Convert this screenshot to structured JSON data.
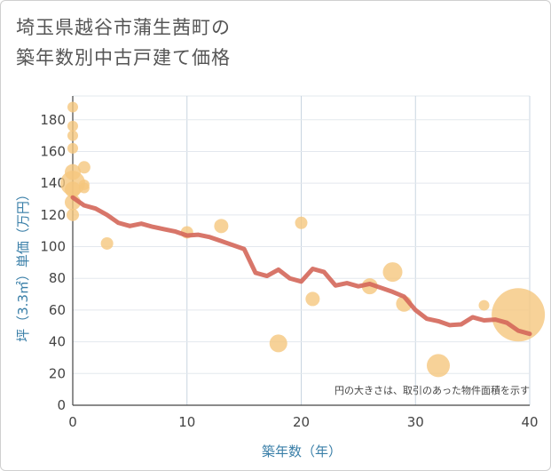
{
  "title_line1": "埼玉県越谷市蒲生茜町の",
  "title_line2": "築年数別中古戸建て価格",
  "chart_data": {
    "type": "scatter",
    "xlabel": "築年数（年）",
    "ylabel": "坪（3.3㎡）単価（万円）",
    "xlim": [
      0,
      40
    ],
    "ylim": [
      0,
      195
    ],
    "x_ticks": [
      0,
      10,
      20,
      30,
      40
    ],
    "y_ticks": [
      0,
      20,
      40,
      60,
      80,
      100,
      120,
      140,
      160,
      180
    ],
    "grid": true,
    "annotation": "円の大きさは、取引のあった物件面積を示す",
    "colors": {
      "points": "#f5c77e",
      "trend": "#d4675a",
      "grid": "#c9d5e0"
    },
    "points": [
      {
        "x": 0,
        "y": 188,
        "size": 6
      },
      {
        "x": 0,
        "y": 176,
        "size": 6
      },
      {
        "x": 0,
        "y": 170,
        "size": 6
      },
      {
        "x": 0,
        "y": 162,
        "size": 6
      },
      {
        "x": 0,
        "y": 147,
        "size": 9
      },
      {
        "x": 0,
        "y": 140,
        "size": 14
      },
      {
        "x": 0,
        "y": 136,
        "size": 9
      },
      {
        "x": 0,
        "y": 128,
        "size": 9
      },
      {
        "x": 0,
        "y": 120,
        "size": 7
      },
      {
        "x": 1,
        "y": 150,
        "size": 7
      },
      {
        "x": 1,
        "y": 139,
        "size": 6
      },
      {
        "x": 1,
        "y": 137,
        "size": 6
      },
      {
        "x": 3,
        "y": 102,
        "size": 7
      },
      {
        "x": 10,
        "y": 109,
        "size": 7
      },
      {
        "x": 13,
        "y": 113,
        "size": 8
      },
      {
        "x": 18,
        "y": 39,
        "size": 10
      },
      {
        "x": 20,
        "y": 115,
        "size": 7
      },
      {
        "x": 21,
        "y": 67,
        "size": 8
      },
      {
        "x": 26,
        "y": 75,
        "size": 9
      },
      {
        "x": 28,
        "y": 84,
        "size": 11
      },
      {
        "x": 29,
        "y": 64,
        "size": 9
      },
      {
        "x": 32,
        "y": 25,
        "size": 13
      },
      {
        "x": 36,
        "y": 63,
        "size": 6
      },
      {
        "x": 39,
        "y": 57,
        "size": 30
      }
    ],
    "trend": [
      {
        "x": 0,
        "y": 131
      },
      {
        "x": 1,
        "y": 126
      },
      {
        "x": 2,
        "y": 124
      },
      {
        "x": 3,
        "y": 120
      },
      {
        "x": 4,
        "y": 115
      },
      {
        "x": 5,
        "y": 113
      },
      {
        "x": 6,
        "y": 114.5
      },
      {
        "x": 7,
        "y": 112.5
      },
      {
        "x": 8,
        "y": 111
      },
      {
        "x": 9,
        "y": 109.5
      },
      {
        "x": 10,
        "y": 107
      },
      {
        "x": 11,
        "y": 107.5
      },
      {
        "x": 12,
        "y": 106
      },
      {
        "x": 13,
        "y": 103.5
      },
      {
        "x": 14,
        "y": 101
      },
      {
        "x": 15,
        "y": 98.5
      },
      {
        "x": 16,
        "y": 83.5
      },
      {
        "x": 17,
        "y": 81.5
      },
      {
        "x": 18,
        "y": 85.5
      },
      {
        "x": 19,
        "y": 80
      },
      {
        "x": 20,
        "y": 78
      },
      {
        "x": 21,
        "y": 86
      },
      {
        "x": 22,
        "y": 84
      },
      {
        "x": 23,
        "y": 75.5
      },
      {
        "x": 24,
        "y": 77
      },
      {
        "x": 25,
        "y": 75
      },
      {
        "x": 26,
        "y": 76.5
      },
      {
        "x": 27,
        "y": 74
      },
      {
        "x": 28,
        "y": 71.5
      },
      {
        "x": 29,
        "y": 68.5
      },
      {
        "x": 30,
        "y": 60
      },
      {
        "x": 31,
        "y": 54.5
      },
      {
        "x": 32,
        "y": 53
      },
      {
        "x": 33,
        "y": 50.5
      },
      {
        "x": 34,
        "y": 51
      },
      {
        "x": 35,
        "y": 55.5
      },
      {
        "x": 36,
        "y": 53.5
      },
      {
        "x": 37,
        "y": 54
      },
      {
        "x": 38,
        "y": 52
      },
      {
        "x": 39,
        "y": 47
      },
      {
        "x": 40,
        "y": 45
      }
    ]
  }
}
